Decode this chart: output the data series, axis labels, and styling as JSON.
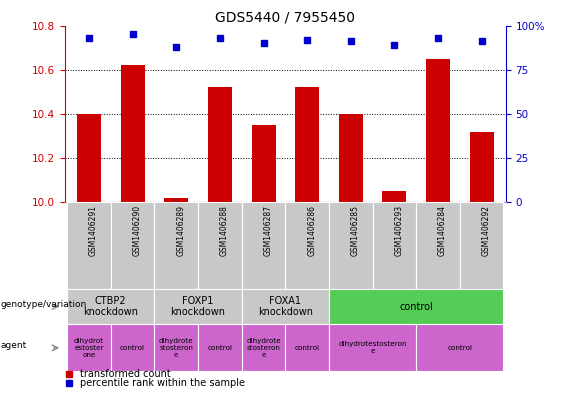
{
  "title": "GDS5440 / 7955450",
  "samples": [
    "GSM1406291",
    "GSM1406290",
    "GSM1406289",
    "GSM1406288",
    "GSM1406287",
    "GSM1406286",
    "GSM1406285",
    "GSM1406293",
    "GSM1406284",
    "GSM1406292"
  ],
  "transformed_count": [
    10.4,
    10.62,
    10.02,
    10.52,
    10.35,
    10.52,
    10.4,
    10.05,
    10.65,
    10.32
  ],
  "percentile_rank": [
    93,
    95,
    88,
    93,
    90,
    92,
    91,
    89,
    93,
    91
  ],
  "ylim_left": [
    10.0,
    10.8
  ],
  "ylim_right": [
    0,
    100
  ],
  "yticks_left": [
    10.0,
    10.2,
    10.4,
    10.6,
    10.8
  ],
  "yticks_right": [
    0,
    25,
    50,
    75,
    100
  ],
  "ytick_labels_right": [
    "0",
    "25",
    "50",
    "75",
    "100%"
  ],
  "genotype_groups": [
    {
      "label": "CTBP2\nknockdown",
      "start": 0,
      "end": 2,
      "color": "#c8c8c8"
    },
    {
      "label": "FOXP1\nknockdown",
      "start": 2,
      "end": 4,
      "color": "#c8c8c8"
    },
    {
      "label": "FOXA1\nknockdown",
      "start": 4,
      "end": 6,
      "color": "#c8c8c8"
    },
    {
      "label": "control",
      "start": 6,
      "end": 10,
      "color": "#55cc55"
    }
  ],
  "agent_groups": [
    {
      "label": "dihydrot\nestoster\none",
      "start": 0,
      "end": 1,
      "color": "#cc66cc"
    },
    {
      "label": "control",
      "start": 1,
      "end": 2,
      "color": "#cc66cc"
    },
    {
      "label": "dihydrote\nstosteron\ne",
      "start": 2,
      "end": 3,
      "color": "#cc66cc"
    },
    {
      "label": "control",
      "start": 3,
      "end": 4,
      "color": "#cc66cc"
    },
    {
      "label": "dihydrote\nstosteron\ne",
      "start": 4,
      "end": 5,
      "color": "#cc66cc"
    },
    {
      "label": "control",
      "start": 5,
      "end": 6,
      "color": "#cc66cc"
    },
    {
      "label": "dihydrotestosteron\ne",
      "start": 6,
      "end": 8,
      "color": "#cc66cc"
    },
    {
      "label": "control",
      "start": 8,
      "end": 10,
      "color": "#cc66cc"
    }
  ],
  "bar_color": "#cc0000",
  "dot_color": "#0000cc",
  "left_axis_color": "#cc0000",
  "right_axis_color": "#0000cc",
  "sample_box_color": "#c8c8c8",
  "legend_items": [
    {
      "label": "transformed count",
      "color": "#cc0000"
    },
    {
      "label": "percentile rank within the sample",
      "color": "#0000cc"
    }
  ]
}
